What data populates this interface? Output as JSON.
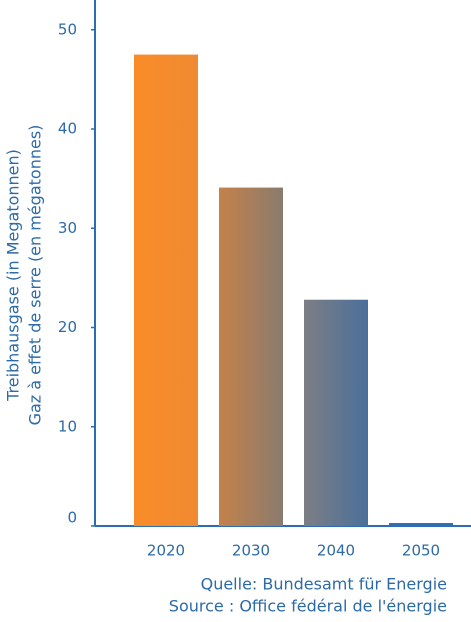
{
  "chart_data": {
    "type": "bar",
    "y_label": [
      "Treibhausgase (in Megatonnen)",
      "Gaz à effet de serre (en mégatonnes)"
    ],
    "source": [
      "Quelle: Bundesamt für Energie",
      "Source : Office fédéral de l'énergie"
    ],
    "categories": [
      "2020",
      "2030",
      "2040",
      "2050"
    ],
    "values": [
      47.5,
      34.1,
      22.8,
      0.3
    ],
    "colors": [
      [
        "#f98c28",
        "#f08a32"
      ],
      [
        "#c4814a",
        "#8a7b6e"
      ],
      [
        "#7d7e85",
        "#4a6f9a"
      ],
      [
        "#2f6db0",
        "#2f6db0"
      ]
    ],
    "axis_color": "#2c6cb0",
    "ylim": [
      0,
      53
    ],
    "yticks": [
      0,
      10,
      20,
      30,
      40,
      50
    ]
  }
}
